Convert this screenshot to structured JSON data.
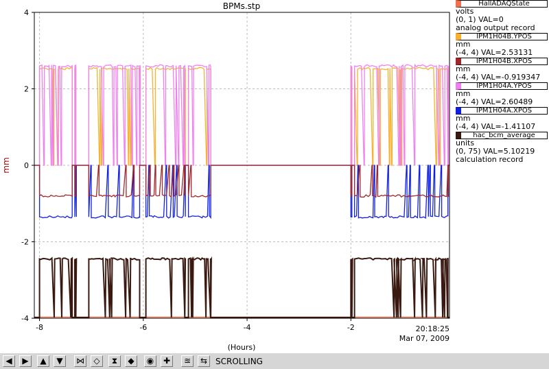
{
  "chart_data": {
    "type": "line",
    "title": "BPMs.stp",
    "xlabel": "(Hours)",
    "ylabel": "mm",
    "xlim": [
      -8.1,
      -0.1
    ],
    "ylim": [
      -4,
      4
    ],
    "x_ticks": [
      "-8",
      "-6",
      "-4",
      "-2"
    ],
    "y_ticks": [
      "4",
      "2",
      "0",
      "-2",
      "-4"
    ],
    "timestamp_time": "20:18:25",
    "timestamp_date": "Mar 07, 2009",
    "grid": true,
    "beam_on_intervals": [
      [
        -8.0,
        -7.37
      ],
      [
        -7.32,
        -7.3
      ],
      [
        -7.05,
        -6.07
      ],
      [
        -5.95,
        -5.2
      ],
      [
        -5.13,
        -4.7
      ],
      [
        -2.0,
        -1.98
      ],
      [
        -1.93,
        -0.13
      ]
    ],
    "series": [
      {
        "name": "HallADAQState",
        "color": "#f07050",
        "units": "volts",
        "range": "(0, 1)",
        "value": "VAL=0",
        "record": "analog output record"
      },
      {
        "name": "IPM1H04B.YPOS",
        "color": "#f8b030",
        "units": "mm",
        "range": "(-4, 4)",
        "value": "VAL=2.53131",
        "on_level": 2.53,
        "off_level": 0.0
      },
      {
        "name": "IPM1H04B.XPOS",
        "color": "#a0282a",
        "units": "mm",
        "range": "(-4, 4)",
        "value": "VAL=-0.919347",
        "on_level": -0.8,
        "off_level": 0.0
      },
      {
        "name": "IPM1H04A.YPOS",
        "color": "#f080f0",
        "units": "mm",
        "range": "(-4, 4)",
        "value": "VAL=2.60489",
        "on_level": 2.6,
        "off_level": 0.0
      },
      {
        "name": "IPM1H04A.XPOS",
        "color": "#1020e0",
        "units": "mm",
        "range": "(-4, 4)",
        "value": "VAL=-1.41107",
        "on_level": -1.35,
        "off_level": 0.0
      },
      {
        "name": "hac_bcm_average",
        "color": "#3a1a10",
        "units": "units",
        "range": "(0, 75)",
        "value": "VAL=5.10219",
        "record": "calculation record"
      }
    ]
  },
  "toolbar": {
    "mode": "SCROLLING",
    "buttons": [
      "arrow-left-icon",
      "arrow-right-icon",
      "arrow-up-icon",
      "arrow-down-icon",
      "zoom-in-x-icon",
      "zoom-out-x-icon",
      "zoom-in-y-icon",
      "zoom-out-y-icon",
      "center-icon",
      "add-icon",
      "autoscale-icon",
      "scroll-icon"
    ]
  }
}
